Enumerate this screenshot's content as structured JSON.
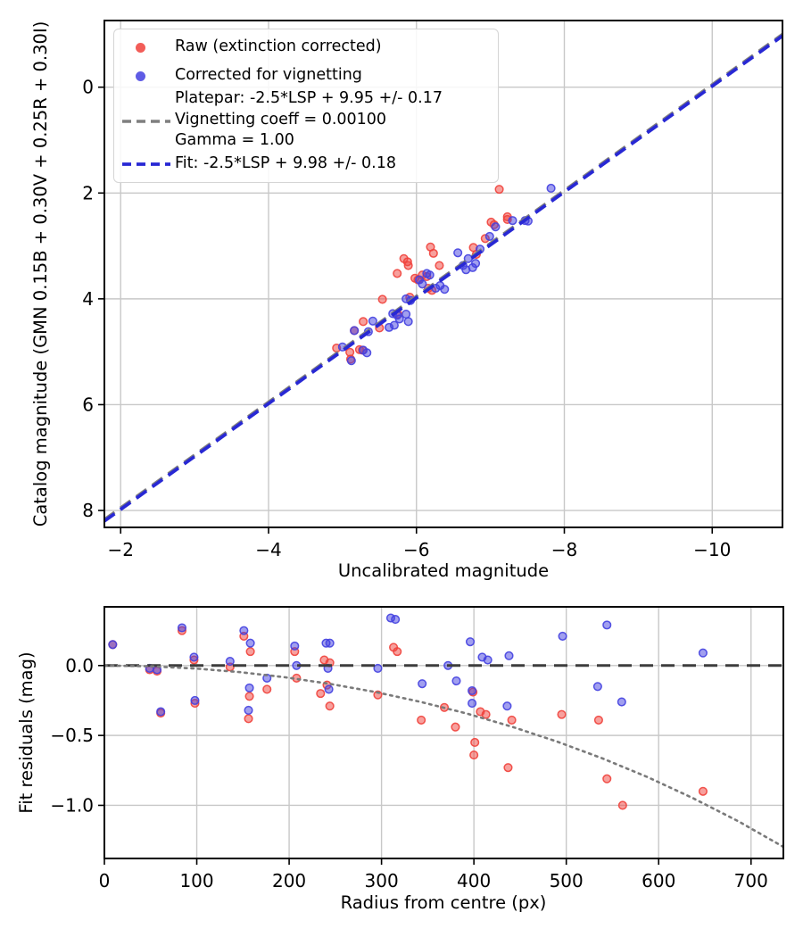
{
  "figure": {
    "background": "#ffffff"
  },
  "legend": {
    "background": "rgba(255,255,255,0.85)",
    "border_color": "#d5d5d5",
    "entries": [
      {
        "type": "marker",
        "color": "#f0413b",
        "label": "Raw (extinction corrected)"
      },
      {
        "type": "marker",
        "color": "#4340e0",
        "label": "Corrected for vignetting"
      },
      {
        "type": "dashed-line",
        "color": "#7f7f7f",
        "label_lines": [
          "Platepar: -2.5*LSP + 9.95 +/- 0.17",
          "Vignetting coeff = 0.00100",
          "Gamma = 1.00"
        ]
      },
      {
        "type": "dashed-line",
        "color": "#2828d4",
        "label": "Fit: -2.5*LSP + 9.98 +/- 0.18"
      }
    ]
  },
  "chart_data": [
    {
      "type": "scatter",
      "title": "",
      "xlabel": "Uncalibrated magnitude",
      "ylabel": "Catalog magnitude (GMN 0.15B + 0.30V + 0.25R + 0.30I)",
      "x_axis_inverted": true,
      "y_axis_inverted": true,
      "xlim": [
        -1.78,
        -10.95
      ],
      "ylim": [
        -1.26,
        8.32
      ],
      "xticks": [
        -2,
        -4,
        -6,
        -8,
        -10
      ],
      "xtick_labels": [
        "−2",
        "−4",
        "−6",
        "−8",
        "−10"
      ],
      "yticks": [
        0,
        2,
        4,
        6,
        8
      ],
      "ytick_labels": [
        "0",
        "2",
        "4",
        "6",
        "8"
      ],
      "grid": true,
      "grid_color": "#c8c8c8",
      "series": [
        {
          "name": "Raw (extinction corrected)",
          "kind": "scatter",
          "color": "#f0413b",
          "points": [
            [
              -7.12,
              1.93
            ],
            [
              -7.23,
              2.45
            ],
            [
              -7.23,
              2.5
            ],
            [
              -7.05,
              2.6
            ],
            [
              -7.01,
              2.55
            ],
            [
              -6.93,
              2.86
            ],
            [
              -6.77,
              3.03
            ],
            [
              -6.81,
              3.16
            ],
            [
              -6.19,
              3.02
            ],
            [
              -6.23,
              3.14
            ],
            [
              -6.31,
              3.37
            ],
            [
              -5.83,
              3.24
            ],
            [
              -5.88,
              3.3
            ],
            [
              -5.89,
              3.37
            ],
            [
              -5.74,
              3.52
            ],
            [
              -6.08,
              3.55
            ],
            [
              -6.14,
              3.58
            ],
            [
              -5.98,
              3.61
            ],
            [
              -6.02,
              3.64
            ],
            [
              -6.16,
              3.8
            ],
            [
              -6.21,
              3.84
            ],
            [
              -5.54,
              4.01
            ],
            [
              -5.91,
              3.97
            ],
            [
              -5.75,
              4.29
            ],
            [
              -5.5,
              4.55
            ],
            [
              -5.28,
              4.43
            ],
            [
              -5.16,
              4.6
            ],
            [
              -4.92,
              4.93
            ],
            [
              -5.1,
              5.01
            ],
            [
              -5.23,
              4.96
            ],
            [
              -5.27,
              4.97
            ],
            [
              -5.11,
              5.14
            ]
          ]
        },
        {
          "name": "Corrected for vignetting",
          "kind": "scatter",
          "color": "#4340e0",
          "points": [
            [
              -7.82,
              1.91
            ],
            [
              -7.47,
              2.52
            ],
            [
              -7.51,
              2.53
            ],
            [
              -7.3,
              2.52
            ],
            [
              -7.07,
              2.64
            ],
            [
              -6.99,
              2.82
            ],
            [
              -6.86,
              3.06
            ],
            [
              -6.7,
              3.24
            ],
            [
              -6.8,
              3.33
            ],
            [
              -6.76,
              3.41
            ],
            [
              -6.63,
              3.37
            ],
            [
              -6.67,
              3.45
            ],
            [
              -6.56,
              3.13
            ],
            [
              -6.14,
              3.52
            ],
            [
              -6.18,
              3.55
            ],
            [
              -6.04,
              3.64
            ],
            [
              -6.08,
              3.72
            ],
            [
              -6.32,
              3.75
            ],
            [
              -6.26,
              3.8
            ],
            [
              -6.38,
              3.82
            ],
            [
              -5.86,
              4.0
            ],
            [
              -5.92,
              4.03
            ],
            [
              -5.68,
              4.28
            ],
            [
              -5.74,
              4.31
            ],
            [
              -5.77,
              4.38
            ],
            [
              -5.86,
              4.29
            ],
            [
              -5.89,
              4.43
            ],
            [
              -5.63,
              4.54
            ],
            [
              -5.7,
              4.5
            ],
            [
              -5.41,
              4.42
            ],
            [
              -5.35,
              4.62
            ],
            [
              -5.16,
              4.6
            ],
            [
              -5.0,
              4.91
            ],
            [
              -5.28,
              4.97
            ],
            [
              -5.33,
              5.02
            ],
            [
              -5.12,
              5.17
            ]
          ]
        },
        {
          "name": "Platepar: -2.5*LSP + 9.95 +/- 0.17 / Vignetting coeff = 0.00100 / Gamma = 1.00",
          "kind": "line",
          "slope": 1,
          "intercept": 9.95,
          "color": "#7f7f7f",
          "style": "dashed",
          "width": 3.4
        },
        {
          "name": "Fit: -2.5*LSP + 9.98 +/- 0.18",
          "kind": "line",
          "slope": 1,
          "intercept": 9.98,
          "color": "#2828d4",
          "style": "dashed",
          "width": 3.8
        }
      ]
    },
    {
      "type": "scatter",
      "title": "",
      "xlabel": "Radius from centre (px)",
      "ylabel": "Fit residuals (mag)",
      "xlim": [
        0,
        735
      ],
      "ylim": [
        0.42,
        -1.38
      ],
      "xticks": [
        0,
        100,
        200,
        300,
        400,
        500,
        600,
        700
      ],
      "xtick_labels": [
        "0",
        "100",
        "200",
        "300",
        "400",
        "500",
        "600",
        "700"
      ],
      "yticks": [
        0,
        -0.5,
        -1.0
      ],
      "ytick_labels": [
        "0.0",
        "−0.5",
        "−1.0"
      ],
      "grid": true,
      "grid_color": "#c8c8c8",
      "series": [
        {
          "name": "raw residuals",
          "kind": "scatter",
          "color": "#f0413b",
          "points": [
            [
              9,
              0.15
            ],
            [
              49,
              -0.03
            ],
            [
              57,
              -0.04
            ],
            [
              61,
              -0.34
            ],
            [
              84,
              0.25
            ],
            [
              97,
              0.04
            ],
            [
              98,
              -0.27
            ],
            [
              136,
              -0.01
            ],
            [
              151,
              0.21
            ],
            [
              158,
              0.1
            ],
            [
              157,
              -0.22
            ],
            [
              156,
              -0.38
            ],
            [
              176,
              -0.17
            ],
            [
              206,
              0.1
            ],
            [
              208,
              -0.09
            ],
            [
              234,
              -0.2
            ],
            [
              238,
              0.04
            ],
            [
              244,
              0.02
            ],
            [
              241,
              -0.14
            ],
            [
              244,
              -0.29
            ],
            [
              296,
              -0.21
            ],
            [
              313,
              0.13
            ],
            [
              317,
              0.1
            ],
            [
              343,
              -0.39
            ],
            [
              368,
              -0.3
            ],
            [
              380,
              -0.44
            ],
            [
              399,
              -0.19
            ],
            [
              401,
              -0.55
            ],
            [
              400,
              -0.64
            ],
            [
              407,
              -0.33
            ],
            [
              413,
              -0.35
            ],
            [
              441,
              -0.39
            ],
            [
              437,
              -0.73
            ],
            [
              495,
              -0.35
            ],
            [
              535,
              -0.39
            ],
            [
              544,
              -0.81
            ],
            [
              561,
              -1.0
            ],
            [
              648,
              -0.9
            ]
          ]
        },
        {
          "name": "vignetting corrected residuals",
          "kind": "scatter",
          "color": "#4340e0",
          "points": [
            [
              9,
              0.15
            ],
            [
              49,
              -0.02
            ],
            [
              57,
              -0.03
            ],
            [
              61,
              -0.33
            ],
            [
              84,
              0.27
            ],
            [
              97,
              0.06
            ],
            [
              98,
              -0.25
            ],
            [
              136,
              0.03
            ],
            [
              151,
              0.25
            ],
            [
              158,
              0.16
            ],
            [
              157,
              -0.16
            ],
            [
              156,
              -0.32
            ],
            [
              176,
              -0.09
            ],
            [
              206,
              0.14
            ],
            [
              208,
              0.0
            ],
            [
              240,
              0.16
            ],
            [
              244,
              0.16
            ],
            [
              243,
              -0.17
            ],
            [
              242,
              -0.02
            ],
            [
              296,
              -0.02
            ],
            [
              310,
              0.34
            ],
            [
              315,
              0.33
            ],
            [
              344,
              -0.13
            ],
            [
              372,
              0.0
            ],
            [
              381,
              -0.11
            ],
            [
              396,
              0.17
            ],
            [
              398,
              -0.18
            ],
            [
              398,
              -0.27
            ],
            [
              409,
              0.06
            ],
            [
              415,
              0.04
            ],
            [
              438,
              0.07
            ],
            [
              436,
              -0.29
            ],
            [
              496,
              0.21
            ],
            [
              544,
              0.29
            ],
            [
              534,
              -0.15
            ],
            [
              560,
              -0.26
            ],
            [
              648,
              0.09
            ]
          ]
        },
        {
          "name": "zero line",
          "kind": "hline",
          "y": 0,
          "color": "#3d3d3d",
          "style": "dashed",
          "width": 3
        },
        {
          "name": "vignetting model curve",
          "kind": "curve",
          "color": "#7a7a7a",
          "style": "dotted",
          "width": 2.6,
          "points": [
            [
              0,
              0
            ],
            [
              49,
              -0.005
            ],
            [
              98,
              -0.021
            ],
            [
              147,
              -0.047
            ],
            [
              196,
              -0.084
            ],
            [
              245,
              -0.132
            ],
            [
              294,
              -0.19
            ],
            [
              343,
              -0.261
            ],
            [
              392,
              -0.343
            ],
            [
              441,
              -0.437
            ],
            [
              490,
              -0.544
            ],
            [
              539,
              -0.664
            ],
            [
              588,
              -0.798
            ],
            [
              637,
              -0.948
            ],
            [
              686,
              -1.113
            ],
            [
              735,
              -1.297
            ]
          ]
        }
      ]
    }
  ]
}
